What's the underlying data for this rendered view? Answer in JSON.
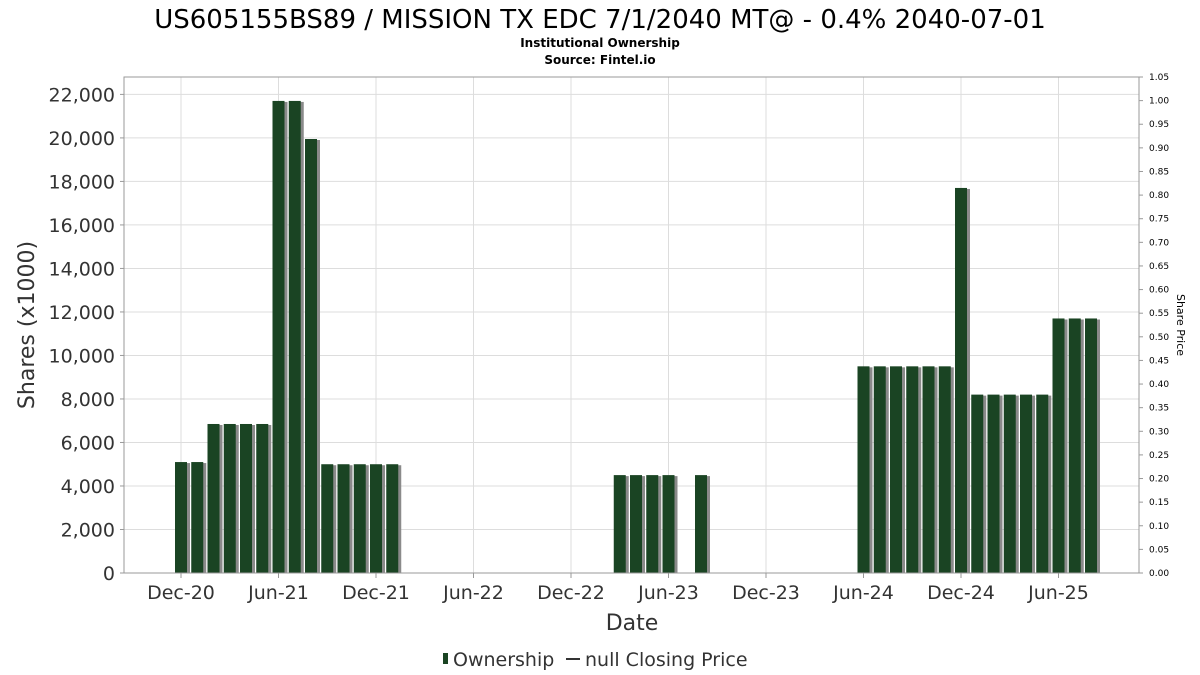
{
  "chart_data": {
    "type": "bar",
    "title": "US605155BS89 / MISSION TX EDC 7/1/2040 MT@ - 0.4% 2040-07-01",
    "subtitle_lines": [
      "Institutional Ownership",
      "Source: Fintel.io"
    ],
    "xlabel": "Date",
    "ylabel": "Shares (x1000)",
    "y2label": "Share Price",
    "x_tick_labels": [
      "Dec-20",
      "Jun-21",
      "Dec-21",
      "Jun-22",
      "Dec-22",
      "Jun-23",
      "Dec-23",
      "Jun-24",
      "Dec-24",
      "Jun-25"
    ],
    "ylim": [
      0,
      22800
    ],
    "y_ticks": [
      0,
      2000,
      4000,
      6000,
      8000,
      10000,
      12000,
      14000,
      16000,
      18000,
      20000,
      22000
    ],
    "y_tick_labels": [
      "0",
      "2,000",
      "4,000",
      "6,000",
      "8,000",
      "10,000",
      "12,000",
      "14,000",
      "16,000",
      "18,000",
      "20,000",
      "22,000"
    ],
    "y2lim": [
      0,
      1.05
    ],
    "y2_tick_labels": [
      "0.00",
      "0.05",
      "0.10",
      "0.15",
      "0.20",
      "0.25",
      "0.30",
      "0.35",
      "0.40",
      "0.45",
      "0.50",
      "0.55",
      "0.60",
      "0.65",
      "0.70",
      "0.75",
      "0.80",
      "0.85",
      "0.90",
      "0.95",
      "1.00",
      "1.05"
    ],
    "grid": true,
    "legend_position": "bottom",
    "series": [
      {
        "name": "Ownership",
        "color": "#1a4423",
        "shadow_color": "#8a8a8a",
        "x": [
          "2020-12",
          "2021-01",
          "2021-02",
          "2021-03",
          "2021-04",
          "2021-05",
          "2021-06",
          "2021-07",
          "2021-08",
          "2021-09",
          "2021-10",
          "2021-11",
          "2021-12",
          "2022-01",
          "2023-03",
          "2023-04",
          "2023-05",
          "2023-06",
          "2023-08",
          "2024-06",
          "2024-07",
          "2024-08",
          "2024-09",
          "2024-10",
          "2024-11",
          "2024-12",
          "2025-01",
          "2025-02",
          "2025-03",
          "2025-04",
          "2025-05",
          "2025-06",
          "2025-07",
          "2025-08"
        ],
        "values": [
          5100,
          5100,
          6850,
          6850,
          6850,
          6850,
          21700,
          21700,
          19950,
          5000,
          5000,
          5000,
          5000,
          5000,
          4500,
          4500,
          4500,
          4500,
          4500,
          9500,
          9500,
          9500,
          9500,
          9500,
          9500,
          17700,
          8200,
          8200,
          8200,
          8200,
          8200,
          11700,
          11700,
          11700
        ]
      }
    ],
    "legend": [
      {
        "label": "Ownership",
        "color": "#1a4423",
        "marker": "bar"
      },
      {
        "label": "null Closing Price",
        "color": "#333333",
        "marker": "line"
      }
    ]
  }
}
